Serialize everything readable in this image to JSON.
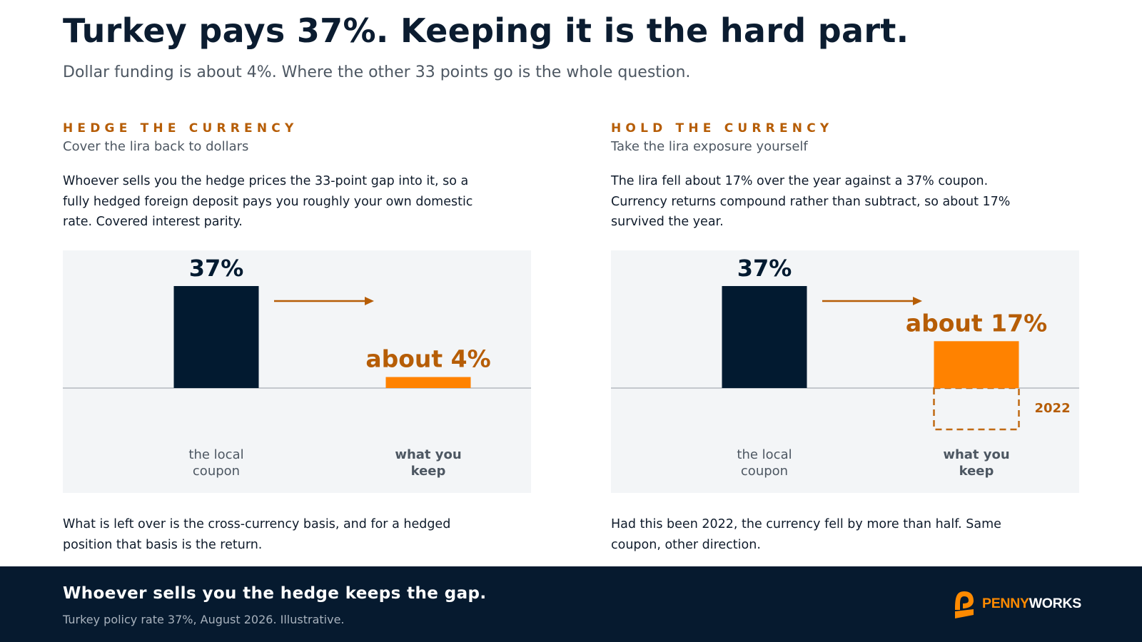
{
  "title": "Turkey pays 37%. Keeping it is the hard part.",
  "subtitle": "Dollar funding is about 4%. Where the other 33 points go is the whole question.",
  "colors": {
    "navy": "#021a30",
    "orange": "#ff8200",
    "orange_text": "#b65d06",
    "panel": "#f3f5f7",
    "baseline": "#a7adb4"
  },
  "left": {
    "eyebrow": "HEDGE THE CURRENCY",
    "tagline": "Cover the lira back to dollars",
    "body": "Whoever sells you the hedge prices the 33-point gap into it, so a fully hedged foreign deposit pays you roughly your own domestic rate. Covered interest parity.",
    "note": "What is left over is the cross-currency basis, and for a hedged position that basis is the return."
  },
  "right": {
    "eyebrow": "HOLD THE CURRENCY",
    "tagline": "Take the lira exposure yourself",
    "body": "The lira fell about 17% over the year against a 37% coupon. Currency returns compound rather than subtract, so about 17% survived the year.",
    "note": "Had this been 2022, the currency fell by more than half. Same coupon, other direction."
  },
  "chart_data": [
    {
      "type": "bar",
      "categories": [
        "the local coupon",
        "what you keep"
      ],
      "category_lines": [
        [
          "the local",
          "coupon"
        ],
        [
          "what you",
          "keep"
        ]
      ],
      "values": [
        37,
        4
      ],
      "value_labels": [
        "37%",
        "about 4%"
      ],
      "bar_colors": [
        "#021a30",
        "#ff8200"
      ],
      "ylim": [
        -16,
        37
      ],
      "arrow": "from first bar toward second"
    },
    {
      "type": "bar",
      "categories": [
        "the local coupon",
        "what you keep"
      ],
      "category_lines": [
        [
          "the local",
          "coupon"
        ],
        [
          "what you",
          "keep"
        ]
      ],
      "values": [
        37,
        17
      ],
      "value_labels": [
        "37%",
        "about 17%"
      ],
      "bar_colors": [
        "#021a30",
        "#ff8200"
      ],
      "ylim": [
        -16,
        37
      ],
      "arrow": "from first bar toward second",
      "overlay": {
        "label": "2022",
        "value": -15,
        "style": "dashed outline"
      }
    }
  ],
  "footer": {
    "headline": "Whoever sells you the hedge keeps the gap.",
    "source": "Turkey policy rate 37%, August 2026. Illustrative.",
    "logo_alt": "PENNYWORKS",
    "logo_part1": "PENNY",
    "logo_part2": "WORKS",
    "logo_icon": "pennyworks-logo-icon"
  }
}
